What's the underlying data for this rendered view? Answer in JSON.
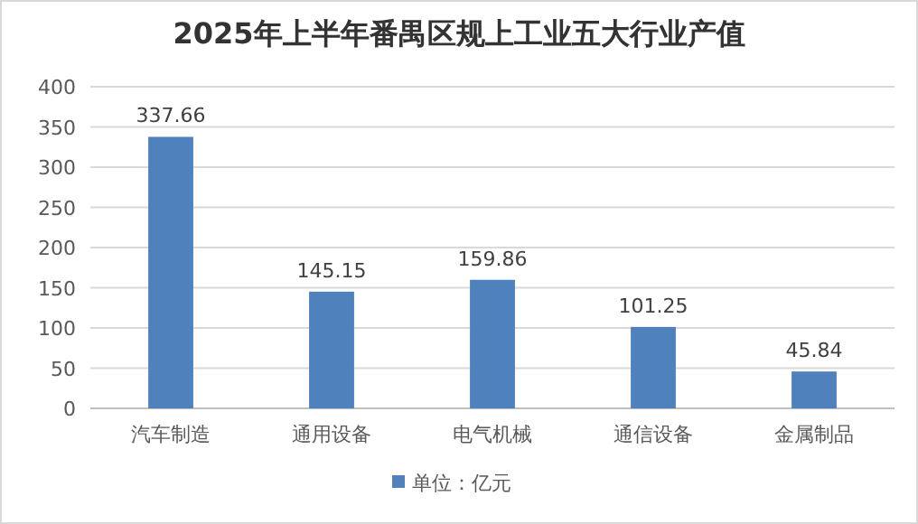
{
  "chart_data": {
    "type": "bar",
    "title": "2025年上半年番禺区规上工业五大行业产值",
    "categories": [
      "汽车制造",
      "通用设备",
      "电气机械",
      "通信设备",
      "金属制品"
    ],
    "series": [
      {
        "name": "单位：亿元",
        "color": "#4f81bd",
        "values": [
          337.66,
          145.15,
          159.86,
          101.25,
          45.84
        ]
      }
    ],
    "ylim": [
      0,
      400
    ],
    "yticks": [
      0,
      50,
      100,
      150,
      200,
      250,
      300,
      350,
      400
    ],
    "grid": "y",
    "legend": "bottom",
    "data_labels": true
  }
}
